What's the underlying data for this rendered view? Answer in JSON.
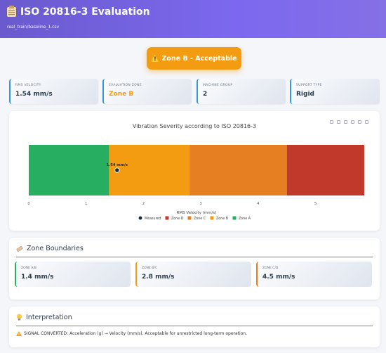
{
  "header": {
    "title": "ISO 20816-3 Evaluation",
    "file": "real_train/baseline_1.csv"
  },
  "zone_button": {
    "icon": "warning-icon",
    "label": "⚠️ Zone B - Acceptable",
    "color": "#f39c12"
  },
  "metrics": [
    {
      "label": "RMS VELOCITY",
      "value": "1.54 mm/s",
      "accent": "#3498db",
      "value_color": "#2c3e50"
    },
    {
      "label": "EVALUATION ZONE",
      "value": "Zone B",
      "accent": "#3498db",
      "value_color": "#f39c12"
    },
    {
      "label": "MACHINE GROUP",
      "value": "2",
      "accent": "#3498db",
      "value_color": "#2c3e50"
    },
    {
      "label": "SUPPORT TYPE",
      "value": "Rigid",
      "accent": "#3498db",
      "value_color": "#2c3e50"
    }
  ],
  "chart_data": {
    "type": "bar",
    "orientation": "horizontal-stacked",
    "title": "Vibration Severity according to ISO 20816-3",
    "xlabel": "RMS Velocity (mm/s)",
    "ylabel": "",
    "xlim": [
      0,
      5.85
    ],
    "xticks": [
      0,
      1,
      2,
      3,
      4,
      5
    ],
    "zones": [
      {
        "name": "Zone A",
        "from": 0,
        "to": 1.4,
        "color": "#27ae60"
      },
      {
        "name": "Zone B",
        "from": 1.4,
        "to": 2.8,
        "color": "#f39c12"
      },
      {
        "name": "Zone C",
        "from": 2.8,
        "to": 4.5,
        "color": "#e67e22"
      },
      {
        "name": "Zone D",
        "from": 4.5,
        "to": 5.85,
        "color": "#c0392b"
      }
    ],
    "measured": {
      "name": "Measured",
      "value": 1.54,
      "label": "1.54 mm/s",
      "color": "#1c2833"
    },
    "legend": [
      "Measured",
      "Zone D",
      "Zone C",
      "Zone B",
      "Zone A"
    ],
    "legend_position": "bottom"
  },
  "boundaries": {
    "title": "Zone Boundaries",
    "icon": "ruler-icon",
    "items": [
      {
        "label": "ZONE A/B",
        "value": "1.4 mm/s",
        "accent": "#27ae60"
      },
      {
        "label": "ZONE B/C",
        "value": "2.8 mm/s",
        "accent": "#f39c12"
      },
      {
        "label": "ZONE C/D",
        "value": "4.5 mm/s",
        "accent": "#e67e22"
      }
    ]
  },
  "interpretation": {
    "title": "Interpretation",
    "icon": "lightbulb-icon",
    "text": "SIGNAL CONVERTED: Acceleration (g) → Velocity (mm/s). Acceptable for unrestricted long-term operation."
  }
}
